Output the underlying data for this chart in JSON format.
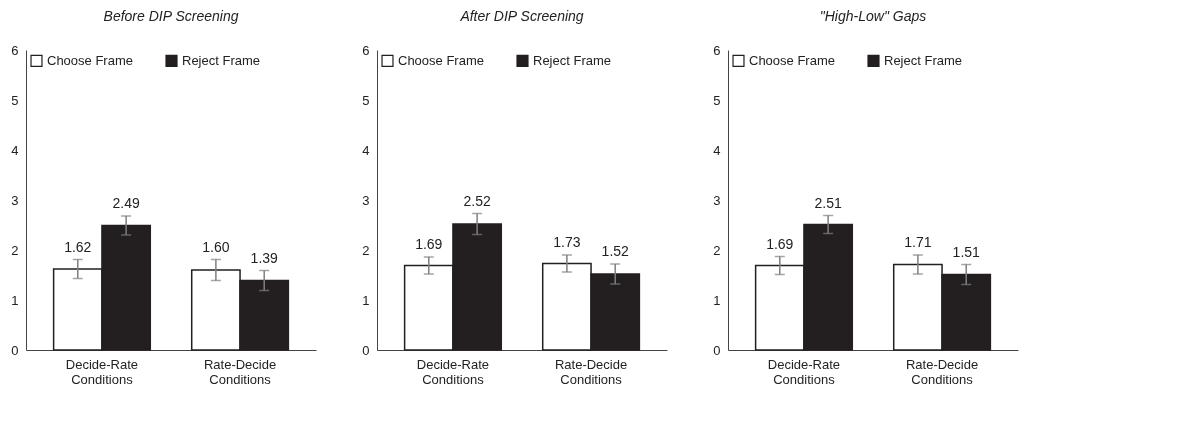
{
  "chart_data": [
    {
      "type": "bar",
      "title": "Before DIP Screening",
      "categories": [
        "Decide-Rate Conditions",
        "Rate-Decide Conditions"
      ],
      "ylim": [
        0,
        6
      ],
      "yticks": [
        0,
        1,
        2,
        3,
        4,
        5,
        6
      ],
      "grid": false,
      "legend": "top left",
      "data_labels": true,
      "series": [
        {
          "name": "Choose Frame",
          "color": "#ffffff",
          "values": [
            1.62,
            1.6
          ],
          "value_labels": [
            "1.62",
            "1.60"
          ],
          "errors": [
            0.19,
            0.21
          ]
        },
        {
          "name": "Reject Frame",
          "color": "#231f20",
          "values": [
            2.49,
            1.39
          ],
          "errors": [
            0.19,
            0.2
          ]
        }
      ]
    },
    {
      "type": "bar",
      "title": "After DIP Screening",
      "categories": [
        "Decide-Rate Conditions",
        "Rate-Decide Conditions"
      ],
      "ylim": [
        0,
        6
      ],
      "yticks": [
        0,
        1,
        2,
        3,
        4,
        5,
        6
      ],
      "grid": false,
      "legend": "top left",
      "data_labels": true,
      "series": [
        {
          "name": "Choose Frame",
          "color": "#ffffff",
          "values": [
            1.69,
            1.73
          ],
          "errors": [
            0.17,
            0.17
          ]
        },
        {
          "name": "Reject Frame",
          "color": "#231f20",
          "values": [
            2.52,
            1.52
          ],
          "errors": [
            0.21,
            0.2
          ]
        }
      ]
    },
    {
      "type": "bar",
      "title": "\"High-Low\" Gaps",
      "categories": [
        "Decide-Rate Conditions",
        "Rate-Decide Conditions"
      ],
      "ylim": [
        0,
        6
      ],
      "yticks": [
        0,
        1,
        2,
        3,
        4,
        5,
        6
      ],
      "grid": false,
      "legend": "top left",
      "data_labels": true,
      "series": [
        {
          "name": "Choose Frame",
          "color": "#ffffff",
          "values": [
            1.69,
            1.71
          ],
          "errors": [
            0.18,
            0.19
          ]
        },
        {
          "name": "Reject Frame",
          "color": "#231f20",
          "values": [
            2.51,
            1.51
          ],
          "errors": [
            0.18,
            0.2
          ]
        }
      ]
    }
  ]
}
